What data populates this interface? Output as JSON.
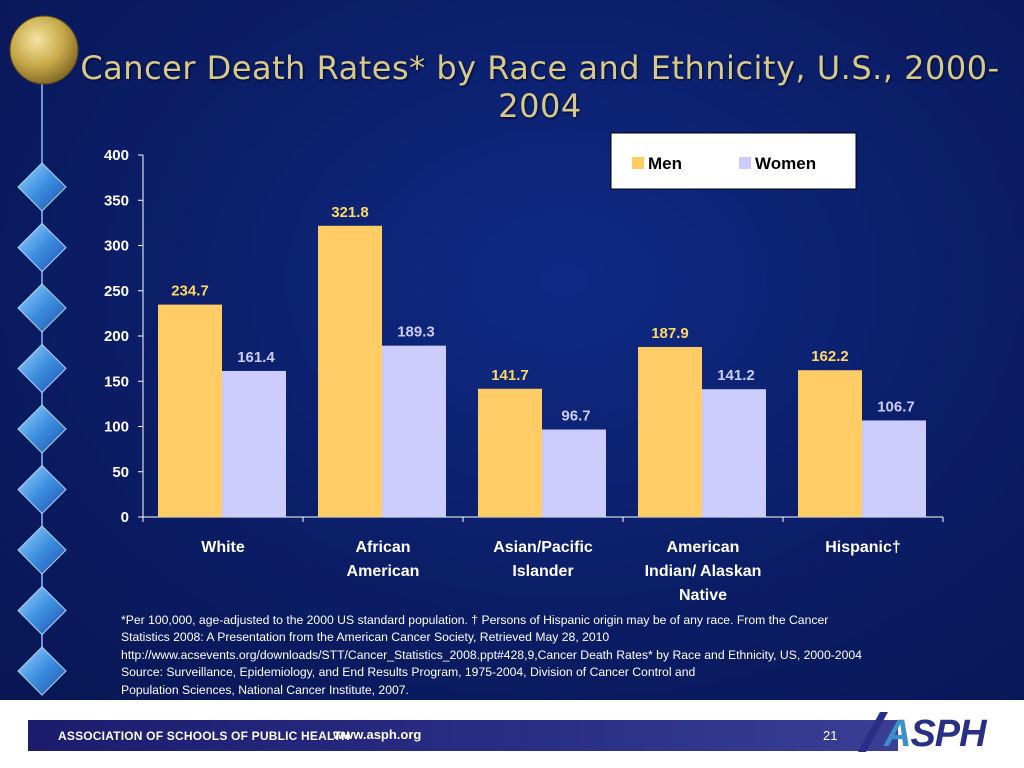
{
  "slide": {
    "title": "Cancer Death Rates* by Race and Ethnicity, U.S., 2000-2004",
    "footnote_lines": [
      "*Per 100,000, age-adjusted to the 2000 US standard population. † Persons of Hispanic origin may be of any race. From the Cancer",
      "Statistics 2008: A Presentation from the American Cancer Society, Retrieved May 28, 2010",
      "http://www.acsevents.org/downloads/STT/Cancer_Statistics_2008.ppt#428,9,Cancer Death Rates* by Race and Ethnicity, US, 2000-2004",
      "Source: Surveillance, Epidemiology, and End Results Program, 1975-2004, Division of Cancer Control and",
      "Population Sciences, National Cancer Institute, 2007."
    ],
    "page_number": "21"
  },
  "footer": {
    "organization": "ASSOCIATION OF SCHOOLS OF PUBLIC HEALTH",
    "url": "www.asph.org",
    "logo_text": "ASPH"
  },
  "colors": {
    "background": "#0b1d66",
    "men": "#ffcc66",
    "women": "#ccccff",
    "men_label": "#ffd966",
    "women_label": "#ccccff",
    "axis_text": "#ffffff"
  },
  "chart_data": {
    "type": "bar",
    "title": "Cancer Death Rates* by Race and Ethnicity, U.S., 2000-2004",
    "categories": [
      [
        "White"
      ],
      [
        "African",
        "American"
      ],
      [
        "Asian/Pacific",
        "Islander"
      ],
      [
        "American",
        "Indian/ Alaskan",
        "Native"
      ],
      [
        "Hispanic†"
      ]
    ],
    "series": [
      {
        "name": "Men",
        "values": [
          234.7,
          321.8,
          141.7,
          187.9,
          162.2
        ],
        "labels": [
          "234.7",
          "321.8",
          "141.7",
          "187.9",
          "162.2"
        ]
      },
      {
        "name": "Women",
        "values": [
          161.4,
          189.3,
          96.7,
          141.2,
          106.7
        ],
        "labels": [
          "161.4",
          "189.3",
          "96.7",
          "141.2",
          "106.7"
        ]
      }
    ],
    "ylim": [
      0,
      400
    ],
    "yticks": [
      "0",
      "50",
      "100",
      "150",
      "200",
      "250",
      "300",
      "350",
      "400"
    ],
    "ytick_values": [
      0,
      50,
      100,
      150,
      200,
      250,
      300,
      350,
      400
    ],
    "xlabel": "",
    "ylabel": "",
    "grid": false,
    "legend_position": "top-right"
  }
}
